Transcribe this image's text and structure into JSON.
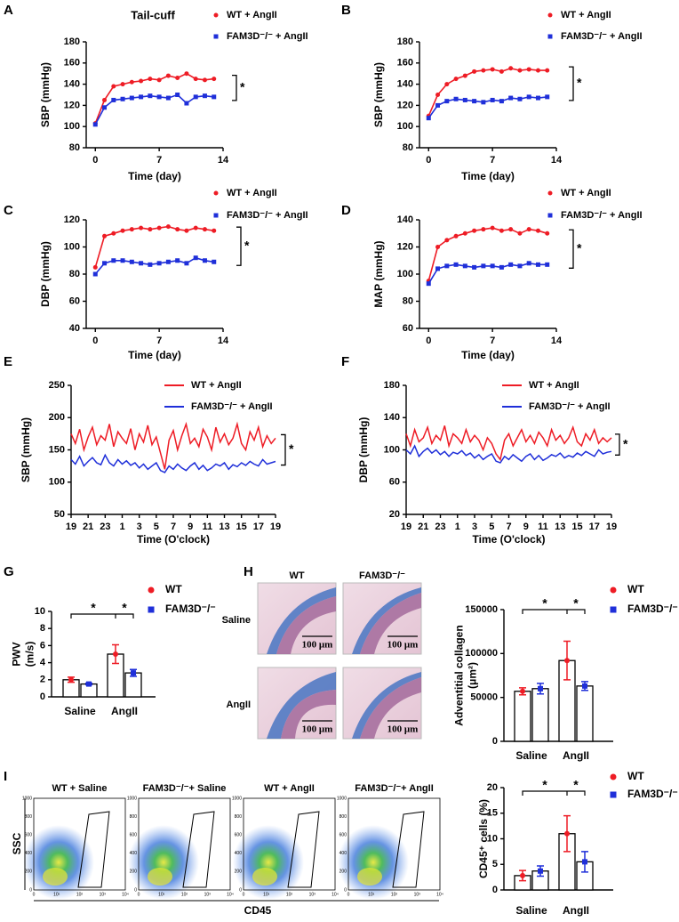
{
  "chart_data": [
    {
      "type": "line",
      "panel": "A",
      "title": "Tail-cuff",
      "xlabel": "Time (day)",
      "ylabel": "SBP (mmHg)",
      "markers": true,
      "x": [
        0,
        1,
        2,
        3,
        4,
        5,
        6,
        7,
        8,
        9,
        10,
        11,
        12,
        13
      ],
      "xlim": [
        -1,
        14
      ],
      "xticks": [
        0,
        7,
        14
      ],
      "ylim": [
        80,
        180
      ],
      "yticks": [
        80,
        100,
        120,
        140,
        160,
        180
      ],
      "significance": "*",
      "series": [
        {
          "name": "WT + AngII",
          "color": "#ee1c25",
          "marker": "circle",
          "values": [
            103,
            125,
            138,
            140,
            142,
            143,
            145,
            144,
            148,
            146,
            150,
            145,
            144,
            145
          ]
        },
        {
          "name": "FAM3D⁻/⁻ + AngII",
          "color": "#1f2fd9",
          "marker": "square",
          "values": [
            102,
            118,
            125,
            126,
            127,
            128,
            129,
            128,
            127,
            130,
            122,
            128,
            129,
            128
          ]
        }
      ]
    },
    {
      "type": "line",
      "panel": "B",
      "xlabel": "Time (day)",
      "ylabel": "SBP (mmHg)",
      "markers": true,
      "x": [
        0,
        1,
        2,
        3,
        4,
        5,
        6,
        7,
        8,
        9,
        10,
        11,
        12,
        13
      ],
      "xlim": [
        -1,
        14
      ],
      "xticks": [
        0,
        7,
        14
      ],
      "ylim": [
        80,
        180
      ],
      "yticks": [
        80,
        100,
        120,
        140,
        160,
        180
      ],
      "significance": "*",
      "series": [
        {
          "name": "WT + AngII",
          "color": "#ee1c25",
          "marker": "circle",
          "values": [
            110,
            130,
            140,
            145,
            148,
            152,
            153,
            154,
            152,
            155,
            153,
            154,
            153,
            153
          ]
        },
        {
          "name": "FAM3D⁻/⁻ + AngII",
          "color": "#1f2fd9",
          "marker": "square",
          "values": [
            108,
            120,
            124,
            126,
            125,
            124,
            123,
            125,
            124,
            127,
            126,
            128,
            127,
            128
          ]
        }
      ]
    },
    {
      "type": "line",
      "panel": "C",
      "xlabel": "Time (day)",
      "ylabel": "DBP (mmHg)",
      "markers": true,
      "x": [
        0,
        1,
        2,
        3,
        4,
        5,
        6,
        7,
        8,
        9,
        10,
        11,
        12,
        13
      ],
      "xlim": [
        -1,
        14
      ],
      "xticks": [
        0,
        7,
        14
      ],
      "ylim": [
        40,
        120
      ],
      "yticks": [
        40,
        60,
        80,
        100,
        120
      ],
      "significance": "*",
      "series": [
        {
          "name": "WT + AngII",
          "color": "#ee1c25",
          "marker": "circle",
          "values": [
            85,
            108,
            110,
            112,
            113,
            114,
            113,
            114,
            115,
            113,
            112,
            114,
            113,
            112
          ]
        },
        {
          "name": "FAM3D⁻/⁻ + AngII",
          "color": "#1f2fd9",
          "marker": "square",
          "values": [
            80,
            88,
            90,
            90,
            89,
            88,
            87,
            88,
            89,
            90,
            88,
            92,
            90,
            89
          ]
        }
      ]
    },
    {
      "type": "line",
      "panel": "D",
      "xlabel": "Time (day)",
      "ylabel": "MAP (mmHg)",
      "markers": true,
      "x": [
        0,
        1,
        2,
        3,
        4,
        5,
        6,
        7,
        8,
        9,
        10,
        11,
        12,
        13
      ],
      "xlim": [
        -1,
        14
      ],
      "xticks": [
        0,
        7,
        14
      ],
      "ylim": [
        60,
        140
      ],
      "yticks": [
        60,
        80,
        100,
        120,
        140
      ],
      "significance": "*",
      "series": [
        {
          "name": "WT + AngII",
          "color": "#ee1c25",
          "marker": "circle",
          "values": [
            95,
            120,
            125,
            128,
            130,
            132,
            133,
            134,
            132,
            133,
            130,
            133,
            132,
            130
          ]
        },
        {
          "name": "FAM3D⁻/⁻ + AngII",
          "color": "#1f2fd9",
          "marker": "square",
          "values": [
            93,
            104,
            106,
            107,
            106,
            105,
            106,
            106,
            105,
            107,
            106,
            108,
            107,
            107
          ]
        }
      ]
    },
    {
      "type": "line",
      "panel": "E",
      "xlabel": "Time (O'clock)",
      "ylabel": "SBP (mmHg)",
      "markers": false,
      "x": [
        0,
        0.5,
        1,
        1.5,
        2,
        2.5,
        3,
        3.5,
        4,
        4.5,
        5,
        5.5,
        6,
        6.5,
        7,
        7.5,
        8,
        8.5,
        9,
        9.5,
        10,
        10.5,
        11,
        11.5,
        12,
        12.5,
        13,
        13.5,
        14,
        14.5,
        15,
        15.5,
        16,
        16.5,
        17,
        17.5,
        18,
        18.5,
        19,
        19.5,
        20,
        20.5,
        21,
        21.5,
        22,
        22.5,
        23,
        23.5,
        24
      ],
      "xlim": [
        0,
        24
      ],
      "xticks": [
        {
          "value": 0,
          "label": "19"
        },
        {
          "value": 2,
          "label": "21"
        },
        {
          "value": 4,
          "label": "23"
        },
        {
          "value": 6,
          "label": "1"
        },
        {
          "value": 8,
          "label": "3"
        },
        {
          "value": 10,
          "label": "5"
        },
        {
          "value": 12,
          "label": "7"
        },
        {
          "value": 14,
          "label": "9"
        },
        {
          "value": 16,
          "label": "11"
        },
        {
          "value": 18,
          "label": "13"
        },
        {
          "value": 20,
          "label": "15"
        },
        {
          "value": 22,
          "label": "17"
        },
        {
          "value": 24,
          "label": "19"
        }
      ],
      "ylim": [
        50,
        250
      ],
      "yticks": [
        50,
        100,
        150,
        200,
        250
      ],
      "significance": "*",
      "series": [
        {
          "name": "WT + AngII",
          "color": "#ee1c25",
          "values": [
            175,
            160,
            182,
            150,
            170,
            185,
            158,
            172,
            165,
            190,
            155,
            178,
            168,
            160,
            183,
            150,
            175,
            162,
            188,
            158,
            170,
            145,
            120,
            165,
            180,
            150,
            172,
            190,
            160,
            168,
            155,
            182,
            170,
            150,
            185,
            162,
            175,
            158,
            168,
            190,
            160,
            150,
            178,
            165,
            185,
            155,
            172,
            160,
            168
          ]
        },
        {
          "name": "FAM3D⁻/⁻ + AngII",
          "color": "#1f2fd9",
          "values": [
            135,
            128,
            140,
            125,
            132,
            138,
            130,
            127,
            142,
            130,
            125,
            135,
            128,
            133,
            126,
            130,
            122,
            128,
            120,
            125,
            130,
            118,
            115,
            125,
            120,
            128,
            122,
            118,
            125,
            130,
            120,
            126,
            118,
            122,
            128,
            125,
            130,
            120,
            127,
            124,
            130,
            126,
            132,
            128,
            125,
            135,
            128,
            130,
            132
          ]
        }
      ]
    },
    {
      "type": "line",
      "panel": "F",
      "xlabel": "Time (O'clock)",
      "ylabel": "DBP (mmHg)",
      "markers": false,
      "x": [
        0,
        0.5,
        1,
        1.5,
        2,
        2.5,
        3,
        3.5,
        4,
        4.5,
        5,
        5.5,
        6,
        6.5,
        7,
        7.5,
        8,
        8.5,
        9,
        9.5,
        10,
        10.5,
        11,
        11.5,
        12,
        12.5,
        13,
        13.5,
        14,
        14.5,
        15,
        15.5,
        16,
        16.5,
        17,
        17.5,
        18,
        18.5,
        19,
        19.5,
        20,
        20.5,
        21,
        21.5,
        22,
        22.5,
        23,
        23.5,
        24
      ],
      "xlim": [
        0,
        24
      ],
      "xticks": [
        {
          "value": 0,
          "label": "19"
        },
        {
          "value": 2,
          "label": "21"
        },
        {
          "value": 4,
          "label": "23"
        },
        {
          "value": 6,
          "label": "1"
        },
        {
          "value": 8,
          "label": "3"
        },
        {
          "value": 10,
          "label": "5"
        },
        {
          "value": 12,
          "label": "7"
        },
        {
          "value": 14,
          "label": "9"
        },
        {
          "value": 16,
          "label": "11"
        },
        {
          "value": 18,
          "label": "13"
        },
        {
          "value": 20,
          "label": "15"
        },
        {
          "value": 22,
          "label": "17"
        },
        {
          "value": 24,
          "label": "19"
        }
      ],
      "ylim": [
        20,
        180
      ],
      "yticks": [
        20,
        60,
        100,
        140,
        180
      ],
      "significance": "*",
      "series": [
        {
          "name": "WT + AngII",
          "color": "#ee1c25",
          "values": [
            120,
            105,
            125,
            110,
            115,
            128,
            108,
            118,
            112,
            130,
            105,
            120,
            115,
            108,
            125,
            110,
            118,
            112,
            100,
            115,
            108,
            95,
            88,
            112,
            120,
            105,
            115,
            125,
            110,
            118,
            108,
            122,
            115,
            105,
            125,
            112,
            118,
            108,
            115,
            128,
            110,
            105,
            120,
            112,
            125,
            108,
            115,
            110,
            115
          ]
        },
        {
          "name": "FAM3D⁻/⁻ + AngII",
          "color": "#1f2fd9",
          "values": [
            100,
            95,
            105,
            92,
            98,
            102,
            96,
            100,
            94,
            98,
            92,
            97,
            95,
            99,
            93,
            96,
            90,
            94,
            88,
            92,
            95,
            86,
            84,
            92,
            88,
            94,
            90,
            86,
            92,
            95,
            88,
            93,
            87,
            90,
            94,
            92,
            96,
            90,
            93,
            91,
            96,
            93,
            98,
            95,
            92,
            100,
            95,
            97,
            98
          ]
        }
      ]
    },
    {
      "type": "bar",
      "panel": "G",
      "ylabel": [
        "PWV",
        "(m/s)"
      ],
      "categories": [
        "Saline",
        "AngII"
      ],
      "ylim": [
        0,
        10
      ],
      "yticks": [
        0,
        2,
        4,
        6,
        8,
        10
      ],
      "significance": [
        "*",
        "*"
      ],
      "series": [
        {
          "name": "WT",
          "color": "#ee1c25",
          "marker": "circle",
          "values": [
            2,
            5
          ],
          "errors": [
            0.3,
            1.1
          ]
        },
        {
          "name": "FAM3D⁻/⁻",
          "color": "#1f2fd9",
          "marker": "square",
          "values": [
            1.5,
            2.8
          ],
          "errors": [
            0.1,
            0.4
          ]
        }
      ]
    },
    {
      "type": "bar",
      "panel": "H",
      "ylabel": [
        "Adventitial collagen",
        "(μm²)"
      ],
      "categories": [
        "Saline",
        "AngII"
      ],
      "ylim": [
        0,
        150000
      ],
      "yticks": [
        0,
        50000,
        100000,
        150000
      ],
      "significance": [
        "*",
        "*"
      ],
      "series": [
        {
          "name": "WT",
          "color": "#ee1c25",
          "marker": "circle",
          "values": [
            57000,
            92000
          ],
          "errors": [
            4000,
            22000
          ]
        },
        {
          "name": "FAM3D⁻/⁻",
          "color": "#1f2fd9",
          "marker": "square",
          "values": [
            60000,
            63000
          ],
          "errors": [
            6000,
            5000
          ]
        }
      ]
    },
    {
      "type": "bar",
      "panel": "I",
      "ylabel": [
        "CD45⁺ cells (%)"
      ],
      "categories": [
        "Saline",
        "AngII"
      ],
      "ylim": [
        0,
        20
      ],
      "yticks": [
        0,
        5,
        10,
        15,
        20
      ],
      "significance": [
        "*",
        "*"
      ],
      "series": [
        {
          "name": "WT",
          "color": "#ee1c25",
          "marker": "circle",
          "values": [
            2.8,
            11
          ],
          "errors": [
            1,
            3.5
          ]
        },
        {
          "name": "FAM3D⁻/⁻",
          "color": "#1f2fd9",
          "marker": "square",
          "values": [
            3.7,
            5.5
          ],
          "errors": [
            1,
            2
          ]
        }
      ]
    }
  ],
  "histology": {
    "columns": [
      "WT",
      "FAM3D⁻/⁻"
    ],
    "rows": [
      "Saline",
      "AngII"
    ],
    "scale_bars": [
      "100 μm",
      "100 μm",
      "100 μm",
      "100 μm"
    ]
  },
  "flow": {
    "titles": [
      "WT + Saline",
      "FAM3D⁻/⁻+ Saline",
      "WT + AngII",
      "FAM3D⁻/⁻+ AngII"
    ],
    "ylabel": "SSC",
    "xlabel": "CD45",
    "yticks": [
      "0",
      "200",
      "400",
      "600",
      "800",
      "1000"
    ],
    "xticks": [
      "0",
      "10¹",
      "10²",
      "10³",
      "10⁴"
    ]
  }
}
